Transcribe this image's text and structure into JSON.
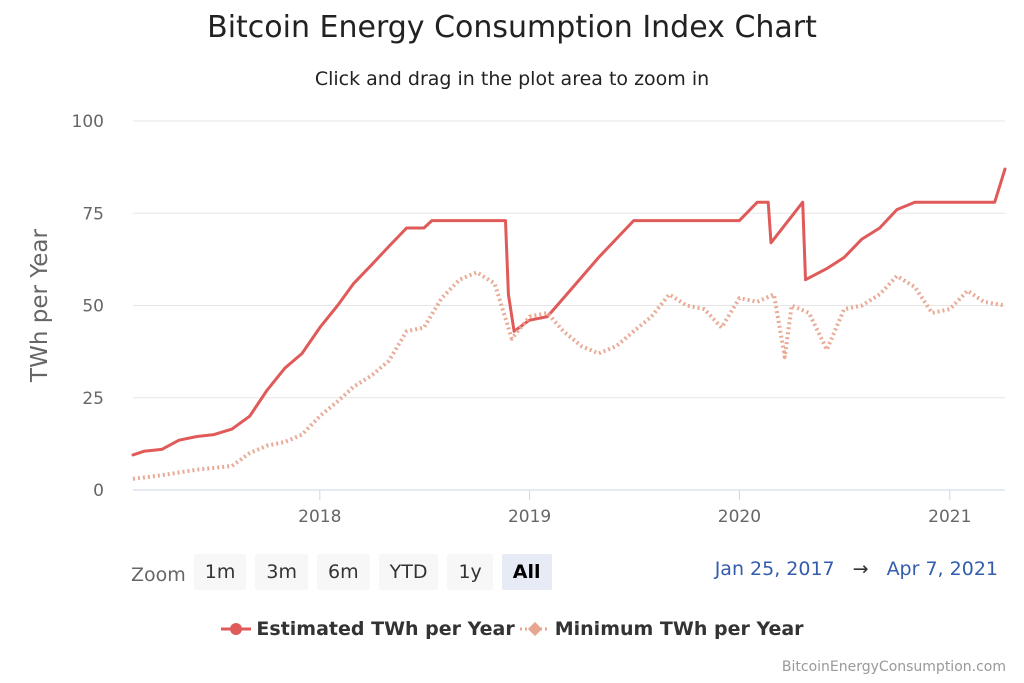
{
  "chart_data": {
    "type": "line",
    "title": "Bitcoin Energy Consumption Index Chart",
    "subtitle": "Click and drag in the plot area to zoom in",
    "ylabel": "TWh per Year",
    "xlabel": "",
    "ylim": [
      0,
      100
    ],
    "yticks": [
      "0",
      "25",
      "50",
      "75",
      "100"
    ],
    "xlim": [
      "2017-02-10",
      "2021-04-07"
    ],
    "xticks": [
      {
        "date": "2018-01-01",
        "label": "2018"
      },
      {
        "date": "2019-01-01",
        "label": "2019"
      },
      {
        "date": "2020-01-01",
        "label": "2020"
      },
      {
        "date": "2021-01-01",
        "label": "2021"
      }
    ],
    "grid": true,
    "legend_position": "bottom-center",
    "series": [
      {
        "name": "Estimated TWh per Year",
        "color": "#e05a5a",
        "style": "solid",
        "points": [
          [
            "2017-02-10",
            9.5
          ],
          [
            "2017-03-01",
            10.5
          ],
          [
            "2017-04-01",
            11.0
          ],
          [
            "2017-05-01",
            13.5
          ],
          [
            "2017-06-01",
            14.5
          ],
          [
            "2017-07-01",
            15.0
          ],
          [
            "2017-08-01",
            16.5
          ],
          [
            "2017-09-01",
            20.0
          ],
          [
            "2017-10-01",
            27.0
          ],
          [
            "2017-11-01",
            33.0
          ],
          [
            "2017-12-01",
            37.0
          ],
          [
            "2018-01-01",
            44.0
          ],
          [
            "2018-02-01",
            50.0
          ],
          [
            "2018-03-01",
            56.0
          ],
          [
            "2018-04-01",
            61.0
          ],
          [
            "2018-05-01",
            66.0
          ],
          [
            "2018-06-01",
            71.0
          ],
          [
            "2018-07-01",
            71.0
          ],
          [
            "2018-07-15",
            73.0
          ],
          [
            "2018-11-20",
            73.0
          ],
          [
            "2018-11-25",
            53.0
          ],
          [
            "2018-12-05",
            43.0
          ],
          [
            "2018-12-31",
            46.0
          ],
          [
            "2019-02-01",
            47.0
          ],
          [
            "2019-03-01",
            52.0
          ],
          [
            "2019-05-01",
            63.0
          ],
          [
            "2019-07-01",
            73.0
          ],
          [
            "2020-01-01",
            73.0
          ],
          [
            "2020-02-01",
            78.0
          ],
          [
            "2020-02-20",
            78.0
          ],
          [
            "2020-02-25",
            67.0
          ],
          [
            "2020-04-20",
            78.0
          ],
          [
            "2020-04-25",
            57.0
          ],
          [
            "2020-06-01",
            60.0
          ],
          [
            "2020-07-01",
            63.0
          ],
          [
            "2020-08-01",
            68.0
          ],
          [
            "2020-09-01",
            71.0
          ],
          [
            "2020-10-01",
            76.0
          ],
          [
            "2020-11-01",
            78.0
          ],
          [
            "2021-03-20",
            78.0
          ],
          [
            "2021-04-07",
            87.0
          ]
        ]
      },
      {
        "name": "Minimum TWh per Year",
        "color": "#e8a58f",
        "style": "dotted",
        "points": [
          [
            "2017-02-10",
            3.0
          ],
          [
            "2017-04-01",
            4.0
          ],
          [
            "2017-06-01",
            5.5
          ],
          [
            "2017-08-01",
            6.5
          ],
          [
            "2017-09-01",
            10.0
          ],
          [
            "2017-10-01",
            12.0
          ],
          [
            "2017-11-01",
            13.0
          ],
          [
            "2017-12-01",
            15.0
          ],
          [
            "2018-01-01",
            20.0
          ],
          [
            "2018-02-01",
            24.0
          ],
          [
            "2018-03-01",
            28.0
          ],
          [
            "2018-04-01",
            31.0
          ],
          [
            "2018-05-01",
            35.0
          ],
          [
            "2018-06-01",
            43.0
          ],
          [
            "2018-07-01",
            44.0
          ],
          [
            "2018-08-01",
            52.0
          ],
          [
            "2018-09-01",
            57.0
          ],
          [
            "2018-10-01",
            59.0
          ],
          [
            "2018-11-01",
            56.0
          ],
          [
            "2018-12-01",
            41.0
          ],
          [
            "2019-01-01",
            47.0
          ],
          [
            "2019-02-01",
            48.0
          ],
          [
            "2019-03-01",
            43.0
          ],
          [
            "2019-04-01",
            39.0
          ],
          [
            "2019-05-01",
            37.0
          ],
          [
            "2019-06-01",
            39.0
          ],
          [
            "2019-07-01",
            43.0
          ],
          [
            "2019-08-01",
            47.0
          ],
          [
            "2019-09-01",
            53.0
          ],
          [
            "2019-10-01",
            50.0
          ],
          [
            "2019-11-01",
            49.0
          ],
          [
            "2019-12-01",
            44.0
          ],
          [
            "2020-01-01",
            52.0
          ],
          [
            "2020-02-01",
            51.0
          ],
          [
            "2020-03-01",
            53.0
          ],
          [
            "2020-03-20",
            36.0
          ],
          [
            "2020-04-01",
            50.0
          ],
          [
            "2020-05-01",
            48.0
          ],
          [
            "2020-06-01",
            38.0
          ],
          [
            "2020-07-01",
            49.0
          ],
          [
            "2020-08-01",
            50.0
          ],
          [
            "2020-09-01",
            53.0
          ],
          [
            "2020-10-01",
            58.0
          ],
          [
            "2020-11-01",
            55.0
          ],
          [
            "2020-12-01",
            48.0
          ],
          [
            "2021-01-01",
            49.0
          ],
          [
            "2021-02-01",
            54.0
          ],
          [
            "2021-03-01",
            51.0
          ],
          [
            "2021-04-07",
            50.0
          ]
        ]
      }
    ]
  },
  "zoom": {
    "label": "Zoom",
    "buttons": [
      "1m",
      "3m",
      "6m",
      "YTD",
      "1y",
      "All"
    ],
    "active": "All"
  },
  "range": {
    "from": "Jan 25, 2017",
    "arrow": "→",
    "to": "Apr 7, 2021"
  },
  "credit": "BitcoinEnergyConsumption.com"
}
